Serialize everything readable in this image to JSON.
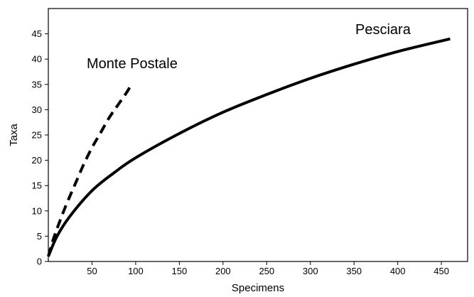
{
  "chart_data": {
    "type": "line",
    "title": "",
    "xlabel": "Specimens",
    "ylabel": "Taxa",
    "xlim": [
      0,
      480
    ],
    "ylim": [
      0,
      50
    ],
    "xticks": [
      50,
      100,
      150,
      200,
      250,
      300,
      350,
      400,
      450
    ],
    "yticks": [
      0,
      5,
      10,
      15,
      20,
      25,
      30,
      35,
      40,
      45
    ],
    "grid": false,
    "legend": "none",
    "series": [
      {
        "name": "Pesciara",
        "style": "solid",
        "color": "#000000",
        "points": [
          [
            0,
            1
          ],
          [
            10,
            5
          ],
          [
            25,
            9
          ],
          [
            50,
            14
          ],
          [
            75,
            17.5
          ],
          [
            100,
            20.5
          ],
          [
            150,
            25.3
          ],
          [
            200,
            29.5
          ],
          [
            250,
            33
          ],
          [
            300,
            36.2
          ],
          [
            350,
            39
          ],
          [
            400,
            41.5
          ],
          [
            460,
            44
          ]
        ]
      },
      {
        "name": "Monte Postale",
        "style": "dashed",
        "color": "#000000",
        "points": [
          [
            0,
            1
          ],
          [
            5,
            4
          ],
          [
            10,
            6.5
          ],
          [
            20,
            11
          ],
          [
            30,
            15
          ],
          [
            40,
            19
          ],
          [
            50,
            22.5
          ],
          [
            60,
            25.5
          ],
          [
            70,
            28.5
          ],
          [
            80,
            31
          ],
          [
            90,
            33.5
          ],
          [
            95,
            35
          ]
        ]
      }
    ]
  }
}
